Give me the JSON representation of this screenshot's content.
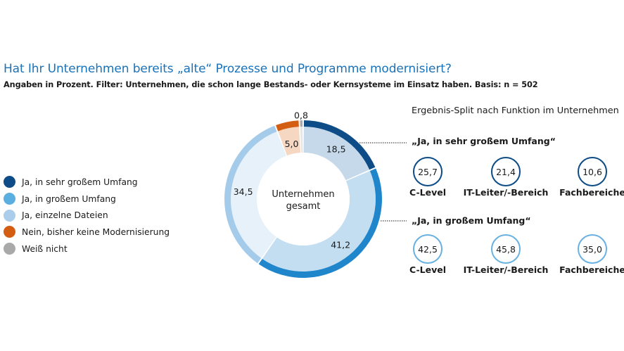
{
  "title": "Hat Ihr Unternehmen bereits „alte“ Prozesse und Programme modernisiert?",
  "subtitle": "Angaben in Prozent. Filter: Unternehmen, die schon lange Bestands- oder Kernsysteme im Einsatz haben. Basis: n = 502",
  "chart_data": {
    "type": "pie",
    "variant": "donut",
    "center_label": [
      "Unternehmen",
      "gesamt"
    ],
    "slices": [
      {
        "label": "Ja, in sehr großem Umfang",
        "value": 18.5,
        "value_label": "18,5",
        "color": "#0d4c86",
        "fill": "#c6d9ea"
      },
      {
        "label": "Ja, in großem Umfang",
        "value": 41.2,
        "value_label": "41,2",
        "color": "#1f86cc",
        "fill": "#c3ddf1"
      },
      {
        "label": "Ja, einzelne Dateien",
        "value": 34.5,
        "value_label": "34,5",
        "color": "#a5cbea",
        "fill": "#e7f1fa"
      },
      {
        "label": "Nein, bisher keine Modernisierung",
        "value": 5.0,
        "value_label": "5,0",
        "color": "#d35e12",
        "fill": "#f5d7c2"
      },
      {
        "label": "Weiß nicht",
        "value": 0.8,
        "value_label": "0,8",
        "color": "#a9a9a9",
        "fill": "#e6e6e6"
      }
    ]
  },
  "legend": [
    {
      "label": "Ja, in sehr großem Umfang",
      "color": "#0d4c86"
    },
    {
      "label": "Ja, in großem Umfang",
      "color": "#5aaee0"
    },
    {
      "label": "Ja, einzelne Dateien",
      "color": "#a9cdea"
    },
    {
      "label": "Nein, bisher keine Modernisierung",
      "color": "#d35e12"
    },
    {
      "label": "Weiß nicht",
      "color": "#a9a9a9"
    }
  ],
  "split": {
    "title": "Ergebnis-Split nach Funktion im Unternehmen",
    "groups": [
      {
        "label": "„Ja, in sehr großem Umfang“",
        "items": [
          {
            "name": "C-Level",
            "value": "25,7"
          },
          {
            "name": "IT-Leiter/-Bereich",
            "value": "21,4"
          },
          {
            "name": "Fachbereiche",
            "value": "10,6"
          }
        ]
      },
      {
        "label": "„Ja, in großem Umfang“",
        "items": [
          {
            "name": "C-Level",
            "value": "42,5"
          },
          {
            "name": "IT-Leiter/-Bereich",
            "value": "45,8"
          },
          {
            "name": "Fachbereiche",
            "value": "35,0"
          }
        ]
      }
    ]
  }
}
